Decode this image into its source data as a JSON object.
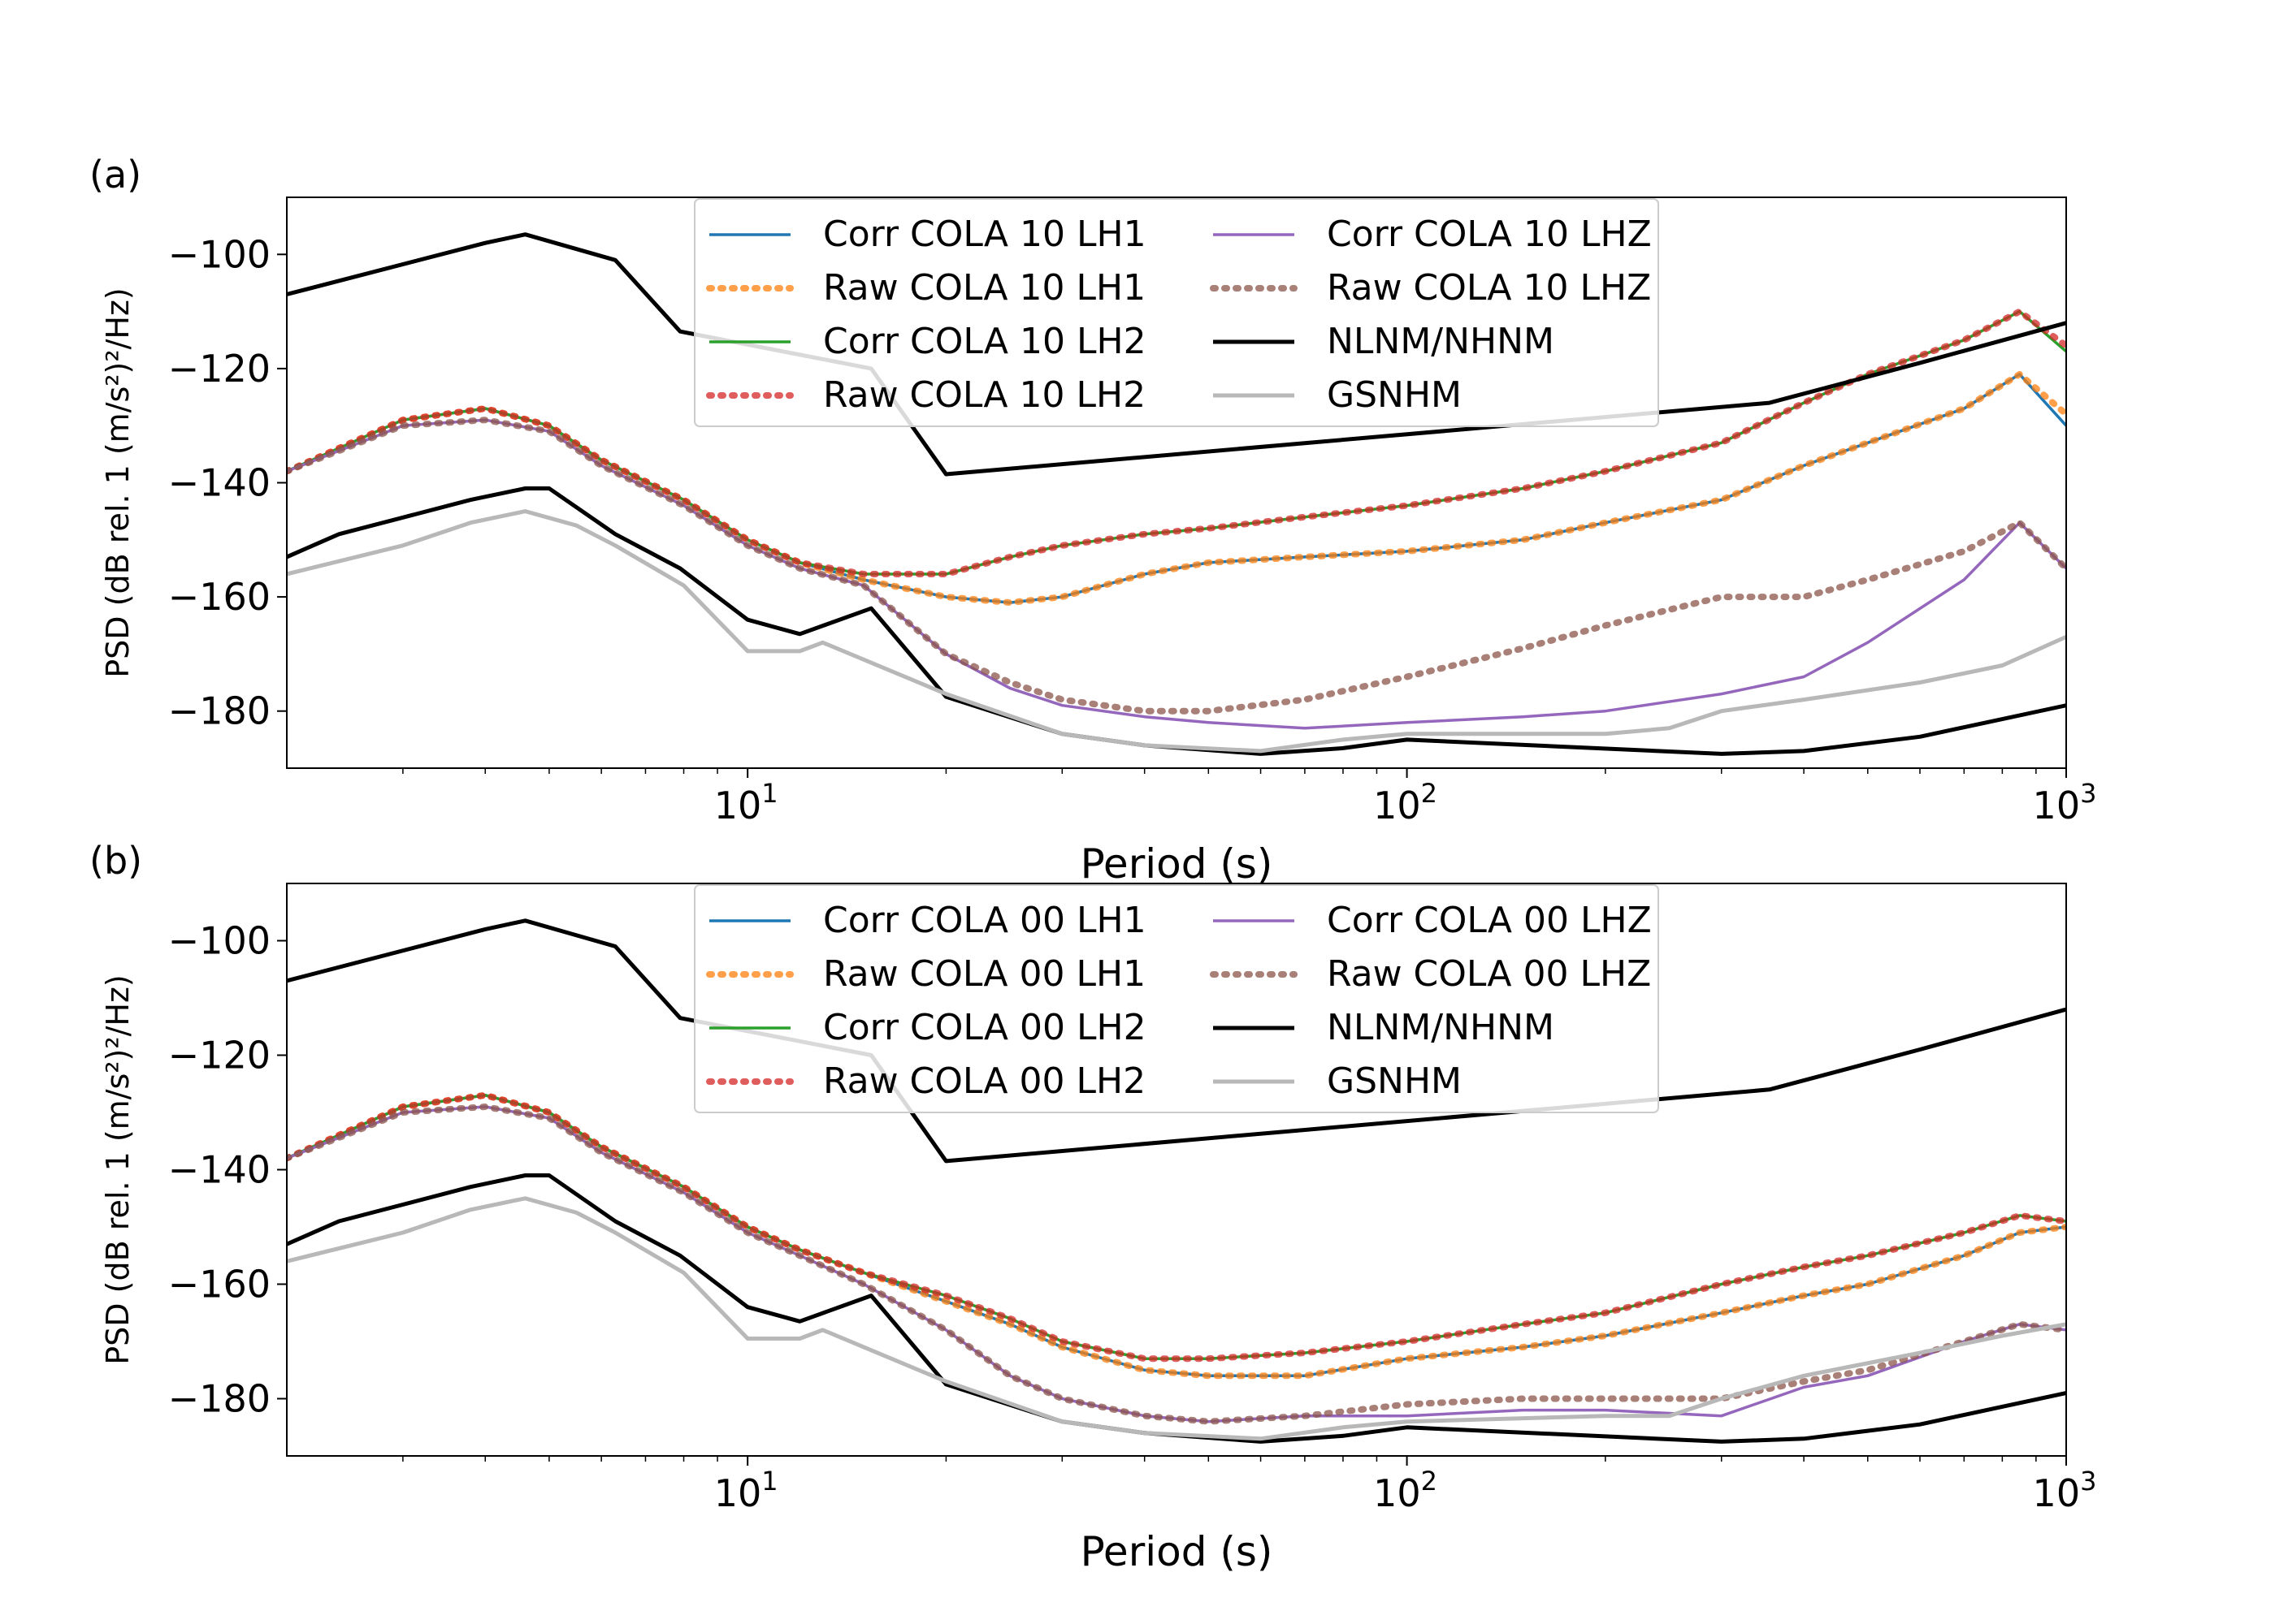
{
  "chart_data": [
    {
      "type": "line",
      "panel_label": "(a)",
      "xlabel": "Period (s)",
      "ylabel": "PSD (dB rel. 1 (m/s²)²/Hz)",
      "xscale": "log",
      "xlim": [
        2,
        1000
      ],
      "ylim": [
        -190,
        -90
      ],
      "yticks": [
        -100,
        -120,
        -140,
        -160,
        -180
      ],
      "xticks": [
        10,
        100,
        1000
      ],
      "xtick_labels": [
        "10",
        "10",
        "10"
      ],
      "xtick_exponents": [
        "1",
        "2",
        "3"
      ],
      "grid": false,
      "legend_placement": "top-center",
      "series": [
        {
          "name": "Corr COLA 10 LH1",
          "color": "#1f77b4",
          "style": "solid",
          "x": [
            2,
            3,
            4,
            5,
            6,
            8,
            10,
            12,
            15,
            20,
            25,
            30,
            40,
            50,
            70,
            100,
            150,
            200,
            300,
            400,
            500,
            700,
            850,
            1000
          ],
          "y": [
            -138,
            -129,
            -127,
            -130,
            -136,
            -143,
            -150,
            -154,
            -157,
            -160,
            -161,
            -160,
            -156,
            -154,
            -153,
            -152,
            -150,
            -147,
            -143,
            -137,
            -133,
            -127,
            -121,
            -130
          ]
        },
        {
          "name": "Raw COLA 10 LH1",
          "color": "#ff7f0e",
          "style": "dotted",
          "x": [
            2,
            3,
            4,
            5,
            6,
            8,
            10,
            12,
            15,
            20,
            25,
            30,
            40,
            50,
            70,
            100,
            150,
            200,
            300,
            400,
            500,
            700,
            850,
            1000
          ],
          "y": [
            -138,
            -129,
            -127,
            -130,
            -136,
            -143,
            -150,
            -154,
            -157,
            -160,
            -161,
            -160,
            -156,
            -154,
            -153,
            -152,
            -150,
            -147,
            -143,
            -137,
            -133,
            -127,
            -121,
            -128
          ]
        },
        {
          "name": "Corr COLA 10 LH2",
          "color": "#2ca02c",
          "style": "solid",
          "x": [
            2,
            3,
            4,
            5,
            6,
            8,
            10,
            12,
            15,
            20,
            25,
            30,
            40,
            50,
            70,
            100,
            150,
            200,
            300,
            400,
            500,
            700,
            850,
            1000
          ],
          "y": [
            -138,
            -129,
            -127,
            -130,
            -136,
            -143,
            -150,
            -154,
            -156,
            -156,
            -153,
            -151,
            -149,
            -148,
            -146,
            -144,
            -141,
            -138,
            -133,
            -126,
            -121,
            -115,
            -110,
            -117
          ]
        },
        {
          "name": "Raw COLA 10 LH2",
          "color": "#d62728",
          "style": "dotted",
          "x": [
            2,
            3,
            4,
            5,
            6,
            8,
            10,
            12,
            15,
            20,
            25,
            30,
            40,
            50,
            70,
            100,
            150,
            200,
            300,
            400,
            500,
            700,
            850,
            1000
          ],
          "y": [
            -138,
            -129,
            -127,
            -130,
            -136,
            -143,
            -150,
            -154,
            -156,
            -156,
            -153,
            -151,
            -149,
            -148,
            -146,
            -144,
            -141,
            -138,
            -133,
            -126,
            -121,
            -115,
            -110,
            -116
          ]
        },
        {
          "name": "Corr COLA 10 LHZ",
          "color": "#9467bd",
          "style": "solid",
          "x": [
            2,
            3,
            4,
            5,
            6,
            8,
            10,
            12,
            15,
            20,
            25,
            30,
            40,
            50,
            70,
            100,
            150,
            200,
            300,
            400,
            500,
            700,
            850,
            1000
          ],
          "y": [
            -138,
            -130,
            -129,
            -131,
            -137,
            -144,
            -151,
            -155,
            -158,
            -170,
            -176,
            -179,
            -181,
            -182,
            -183,
            -182,
            -181,
            -180,
            -177,
            -174,
            -168,
            -157,
            -147,
            -155
          ]
        },
        {
          "name": "Raw COLA 10 LHZ",
          "color": "#8c564b",
          "style": "dotted",
          "x": [
            2,
            3,
            4,
            5,
            6,
            8,
            10,
            12,
            15,
            20,
            25,
            30,
            40,
            50,
            70,
            100,
            150,
            200,
            300,
            400,
            500,
            700,
            850,
            1000
          ],
          "y": [
            -138,
            -130,
            -129,
            -131,
            -137,
            -144,
            -151,
            -155,
            -158,
            -170,
            -175,
            -178,
            -180,
            -180,
            -178,
            -174,
            -169,
            -165,
            -160,
            -160,
            -157,
            -152,
            -147,
            -155
          ]
        },
        {
          "name": "NLNM/NHNM",
          "color": "#000000",
          "style": "solid",
          "x": [
            2,
            4,
            4.6,
            6.3,
            7.9,
            15.4,
            20,
            354.8,
            600,
            1000
          ],
          "y": [
            -107,
            -98,
            -96.5,
            -101,
            -113.5,
            -120,
            -138.5,
            -126,
            -119,
            -112
          ]
        },
        {
          "name": "",
          "color": "#000000",
          "style": "solid",
          "x": [
            2,
            2.4,
            3.8,
            4.6,
            5,
            6.3,
            7.9,
            10,
            12,
            15.4,
            20,
            30,
            40,
            60,
            80,
            100,
            300,
            400,
            600,
            1000
          ],
          "y": [
            -153,
            -149,
            -143,
            -141,
            -141,
            -149,
            -155,
            -164,
            -166.5,
            -162,
            -177.5,
            -184,
            -186,
            -187.5,
            -186.5,
            -185,
            -187.5,
            -187,
            -184.5,
            -179
          ]
        },
        {
          "name": "GSNHM",
          "color": "#b8b8b8",
          "style": "solid",
          "x": [
            2,
            3,
            3.8,
            4.6,
            5.5,
            6.3,
            8,
            10,
            12,
            13,
            20,
            30,
            40,
            60,
            80,
            100,
            200,
            250,
            300,
            400,
            600,
            800,
            1000
          ],
          "y": [
            -156,
            -151,
            -147,
            -145,
            -147.5,
            -151,
            -158,
            -169.5,
            -169.5,
            -168,
            -177,
            -184,
            -186,
            -187,
            -185,
            -184,
            -184,
            -183,
            -180,
            -178,
            -175,
            -172,
            -167
          ]
        }
      ]
    },
    {
      "type": "line",
      "panel_label": "(b)",
      "xlabel": "Period (s)",
      "ylabel": "PSD (dB rel. 1 (m/s²)²/Hz)",
      "xscale": "log",
      "xlim": [
        2,
        1000
      ],
      "ylim": [
        -190,
        -90
      ],
      "yticks": [
        -100,
        -120,
        -140,
        -160,
        -180
      ],
      "xticks": [
        10,
        100,
        1000
      ],
      "xtick_labels": [
        "10",
        "10",
        "10"
      ],
      "xtick_exponents": [
        "1",
        "2",
        "3"
      ],
      "grid": false,
      "legend_placement": "top-center",
      "series": [
        {
          "name": "Corr COLA 00 LH1",
          "color": "#1f77b4",
          "style": "solid",
          "x": [
            2,
            3,
            4,
            5,
            6,
            8,
            10,
            12,
            15,
            20,
            25,
            30,
            40,
            50,
            70,
            100,
            150,
            200,
            300,
            400,
            500,
            700,
            850,
            1000
          ],
          "y": [
            -138,
            -129,
            -127,
            -130,
            -136,
            -143,
            -150,
            -154,
            -158,
            -163,
            -167,
            -171,
            -175,
            -176,
            -176,
            -173,
            -171,
            -169,
            -165,
            -162,
            -160,
            -155,
            -151,
            -150
          ]
        },
        {
          "name": "Raw COLA 00 LH1",
          "color": "#ff7f0e",
          "style": "dotted",
          "x": [
            2,
            3,
            4,
            5,
            6,
            8,
            10,
            12,
            15,
            20,
            25,
            30,
            40,
            50,
            70,
            100,
            150,
            200,
            300,
            400,
            500,
            700,
            850,
            1000
          ],
          "y": [
            -138,
            -129,
            -127,
            -130,
            -136,
            -143,
            -150,
            -154,
            -158,
            -163,
            -167,
            -171,
            -175,
            -176,
            -176,
            -173,
            -171,
            -169,
            -165,
            -162,
            -160,
            -155,
            -151,
            -150
          ]
        },
        {
          "name": "Corr COLA 00 LH2",
          "color": "#2ca02c",
          "style": "solid",
          "x": [
            2,
            3,
            4,
            5,
            6,
            8,
            10,
            12,
            15,
            20,
            25,
            30,
            40,
            50,
            70,
            100,
            150,
            200,
            300,
            400,
            500,
            700,
            850,
            1000
          ],
          "y": [
            -138,
            -129,
            -127,
            -130,
            -136,
            -143,
            -150,
            -154,
            -158,
            -162,
            -166,
            -170,
            -173,
            -173,
            -172,
            -170,
            -167,
            -165,
            -160,
            -157,
            -155,
            -151,
            -148,
            -149
          ]
        },
        {
          "name": "Raw COLA 00 LH2",
          "color": "#d62728",
          "style": "dotted",
          "x": [
            2,
            3,
            4,
            5,
            6,
            8,
            10,
            12,
            15,
            20,
            25,
            30,
            40,
            50,
            70,
            100,
            150,
            200,
            300,
            400,
            500,
            700,
            850,
            1000
          ],
          "y": [
            -138,
            -129,
            -127,
            -130,
            -136,
            -143,
            -150,
            -154,
            -158,
            -162,
            -166,
            -170,
            -173,
            -173,
            -172,
            -170,
            -167,
            -165,
            -160,
            -157,
            -155,
            -151,
            -148,
            -149
          ]
        },
        {
          "name": "Corr COLA 00 LHZ",
          "color": "#9467bd",
          "style": "solid",
          "x": [
            2,
            3,
            4,
            5,
            6,
            8,
            10,
            12,
            15,
            20,
            25,
            30,
            40,
            50,
            70,
            100,
            150,
            200,
            300,
            400,
            500,
            700,
            850,
            1000
          ],
          "y": [
            -138,
            -130,
            -129,
            -131,
            -137,
            -144,
            -151,
            -155,
            -160,
            -168,
            -176,
            -180,
            -183,
            -184,
            -183,
            -183,
            -182,
            -182,
            -183,
            -178,
            -176,
            -170,
            -167,
            -168
          ]
        },
        {
          "name": "Raw COLA 00 LHZ",
          "color": "#8c564b",
          "style": "dotted",
          "x": [
            2,
            3,
            4,
            5,
            6,
            8,
            10,
            12,
            15,
            20,
            25,
            30,
            40,
            50,
            70,
            100,
            150,
            200,
            300,
            400,
            500,
            700,
            850,
            1000
          ],
          "y": [
            -138,
            -130,
            -129,
            -131,
            -137,
            -144,
            -151,
            -155,
            -160,
            -168,
            -176,
            -180,
            -183,
            -184,
            -183,
            -181,
            -180,
            -180,
            -180,
            -177,
            -175,
            -170,
            -167,
            -168
          ]
        },
        {
          "name": "NLNM/NHNM",
          "color": "#000000",
          "style": "solid",
          "x": [
            2,
            4,
            4.6,
            6.3,
            7.9,
            15.4,
            20,
            354.8,
            600,
            1000
          ],
          "y": [
            -107,
            -98,
            -96.5,
            -101,
            -113.5,
            -120,
            -138.5,
            -126,
            -119,
            -112
          ]
        },
        {
          "name": "",
          "color": "#000000",
          "style": "solid",
          "x": [
            2,
            2.4,
            3.8,
            4.6,
            5,
            6.3,
            7.9,
            10,
            12,
            15.4,
            20,
            30,
            40,
            60,
            80,
            100,
            300,
            400,
            600,
            1000
          ],
          "y": [
            -153,
            -149,
            -143,
            -141,
            -141,
            -149,
            -155,
            -164,
            -166.5,
            -162,
            -177.5,
            -184,
            -186,
            -187.5,
            -186.5,
            -185,
            -187.5,
            -187,
            -184.5,
            -179
          ]
        },
        {
          "name": "GSNHM",
          "color": "#b8b8b8",
          "style": "solid",
          "x": [
            2,
            3,
            3.8,
            4.6,
            5.5,
            6.3,
            8,
            10,
            12,
            13,
            20,
            30,
            40,
            60,
            80,
            100,
            200,
            250,
            300,
            400,
            600,
            800,
            1000
          ],
          "y": [
            -156,
            -151,
            -147,
            -145,
            -147.5,
            -151,
            -158,
            -169.5,
            -169.5,
            -168,
            -177,
            -184,
            -186,
            -187,
            -185,
            -184,
            -183,
            -183,
            -180,
            -176,
            -172,
            -169,
            -167
          ]
        }
      ]
    }
  ]
}
